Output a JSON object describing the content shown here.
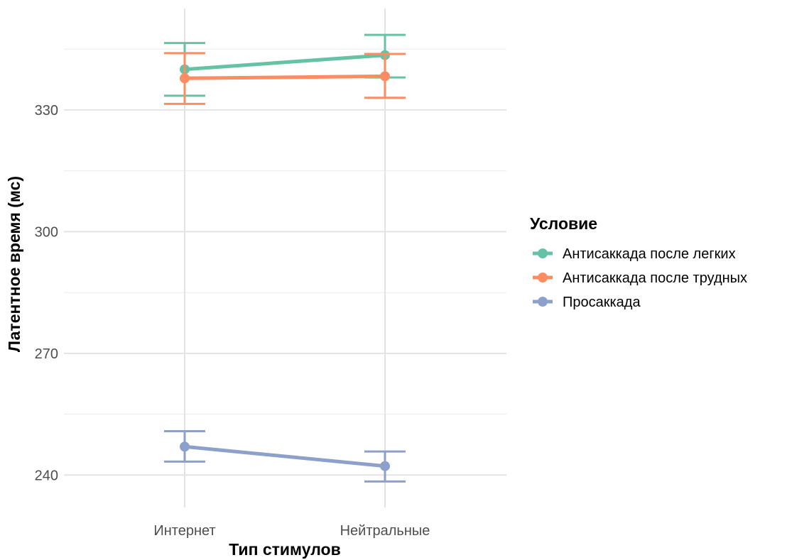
{
  "chart_data": {
    "type": "line",
    "xlabel": "Тип стимулов",
    "ylabel": "Латентное время (мс)",
    "categories": [
      "Интернет",
      "Нейтральные"
    ],
    "ylim": [
      232,
      355
    ],
    "yticks": [
      240,
      270,
      300,
      330
    ],
    "grid": true,
    "legend_title": "Условие",
    "legend_position": "right",
    "series": [
      {
        "name": "Антисаккада после легких",
        "color": "#66C2A5",
        "values": [
          340.0,
          343.5
        ],
        "error_low": [
          333.5,
          338.0
        ],
        "error_high": [
          346.5,
          348.5
        ]
      },
      {
        "name": "Антисаккада после трудных",
        "color": "#FC8D62",
        "values": [
          337.8,
          338.3
        ],
        "error_low": [
          331.5,
          333.0
        ],
        "error_high": [
          344.0,
          343.8
        ]
      },
      {
        "name": "Просаккада",
        "color": "#8DA0CB",
        "values": [
          247.0,
          242.2
        ],
        "error_low": [
          243.3,
          238.4
        ],
        "error_high": [
          250.8,
          245.8
        ]
      }
    ]
  }
}
